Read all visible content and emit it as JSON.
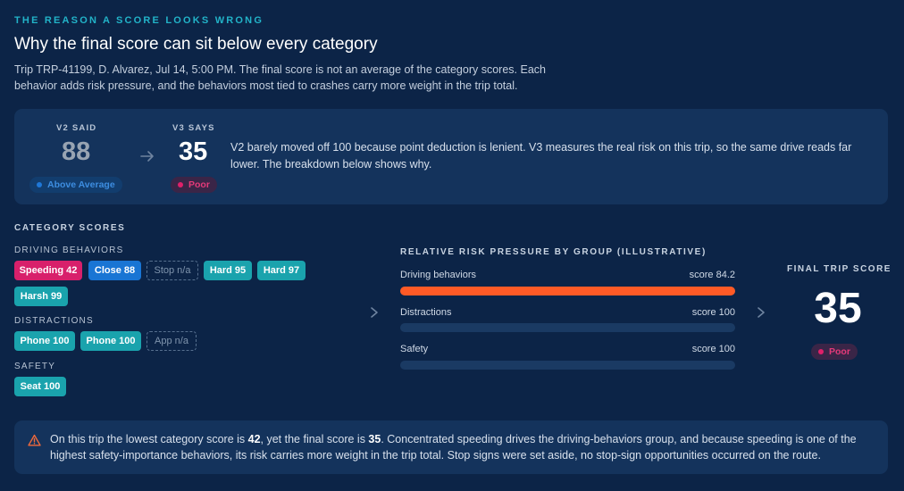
{
  "header": {
    "eyebrow": "THE REASON A SCORE LOOKS WRONG",
    "title": "Why the final score can sit below every category",
    "description": "Trip TRP-41199, D. Alvarez, Jul 14, 5:00 PM. The final score is not an average of the category scores. Each behavior adds risk pressure, and the behaviors most tied to crashes carry more weight in the trip total."
  },
  "comparison": {
    "v2": {
      "label": "V2 SAID",
      "score": "88",
      "badge": "Above Average",
      "badge_color": "#1f78d8"
    },
    "v3": {
      "label": "V3 SAYS",
      "score": "35",
      "badge": "Poor",
      "badge_color": "#e0206a"
    },
    "arrow_icon": "arrow-right-icon",
    "text": "V2 barely moved off 100 because point deduction is lenient. V3 measures the real risk on this trip, so the same drive reads far lower. The breakdown below shows why."
  },
  "categories": {
    "heading": "CATEGORY SCORES",
    "driving": {
      "label": "DRIVING BEHAVIORS",
      "chips": [
        "Speeding 42",
        "Close 88",
        "Stop n/a",
        "Hard 95",
        "Hard 97",
        "Harsh 99"
      ]
    },
    "distractions": {
      "label": "DISTRACTIONS",
      "chips": [
        "Phone 100",
        "Phone 100",
        "App n/a"
      ]
    },
    "safety": {
      "label": "SAFETY",
      "chips": [
        "Seat 100"
      ]
    }
  },
  "pressure": {
    "heading": "RELATIVE RISK PRESSURE BY GROUP (ILLUSTRATIVE)",
    "rows": [
      {
        "label": "Driving behaviors",
        "score": "score 84.2",
        "pressure": 1.0
      },
      {
        "label": "Distractions",
        "score": "score 100",
        "pressure": 0.0
      },
      {
        "label": "Safety",
        "score": "score 100",
        "pressure": 0.0
      }
    ],
    "bar_color": "#ff5a26"
  },
  "final": {
    "label": "FINAL TRIP SCORE",
    "score": "35",
    "badge": "Poor"
  },
  "note": {
    "icon": "warning-triangle-icon",
    "part1": "On this trip the lowest category score is ",
    "lowest": "42",
    "part2": ", yet the final score is ",
    "final": "35",
    "part3": ". Concentrated speeding drives the driving-behaviors group, and because speeding is one of the highest safety-importance behaviors, its risk carries more weight in the trip total. Stop signs were set aside, no stop-sign opportunities occurred on the route."
  }
}
